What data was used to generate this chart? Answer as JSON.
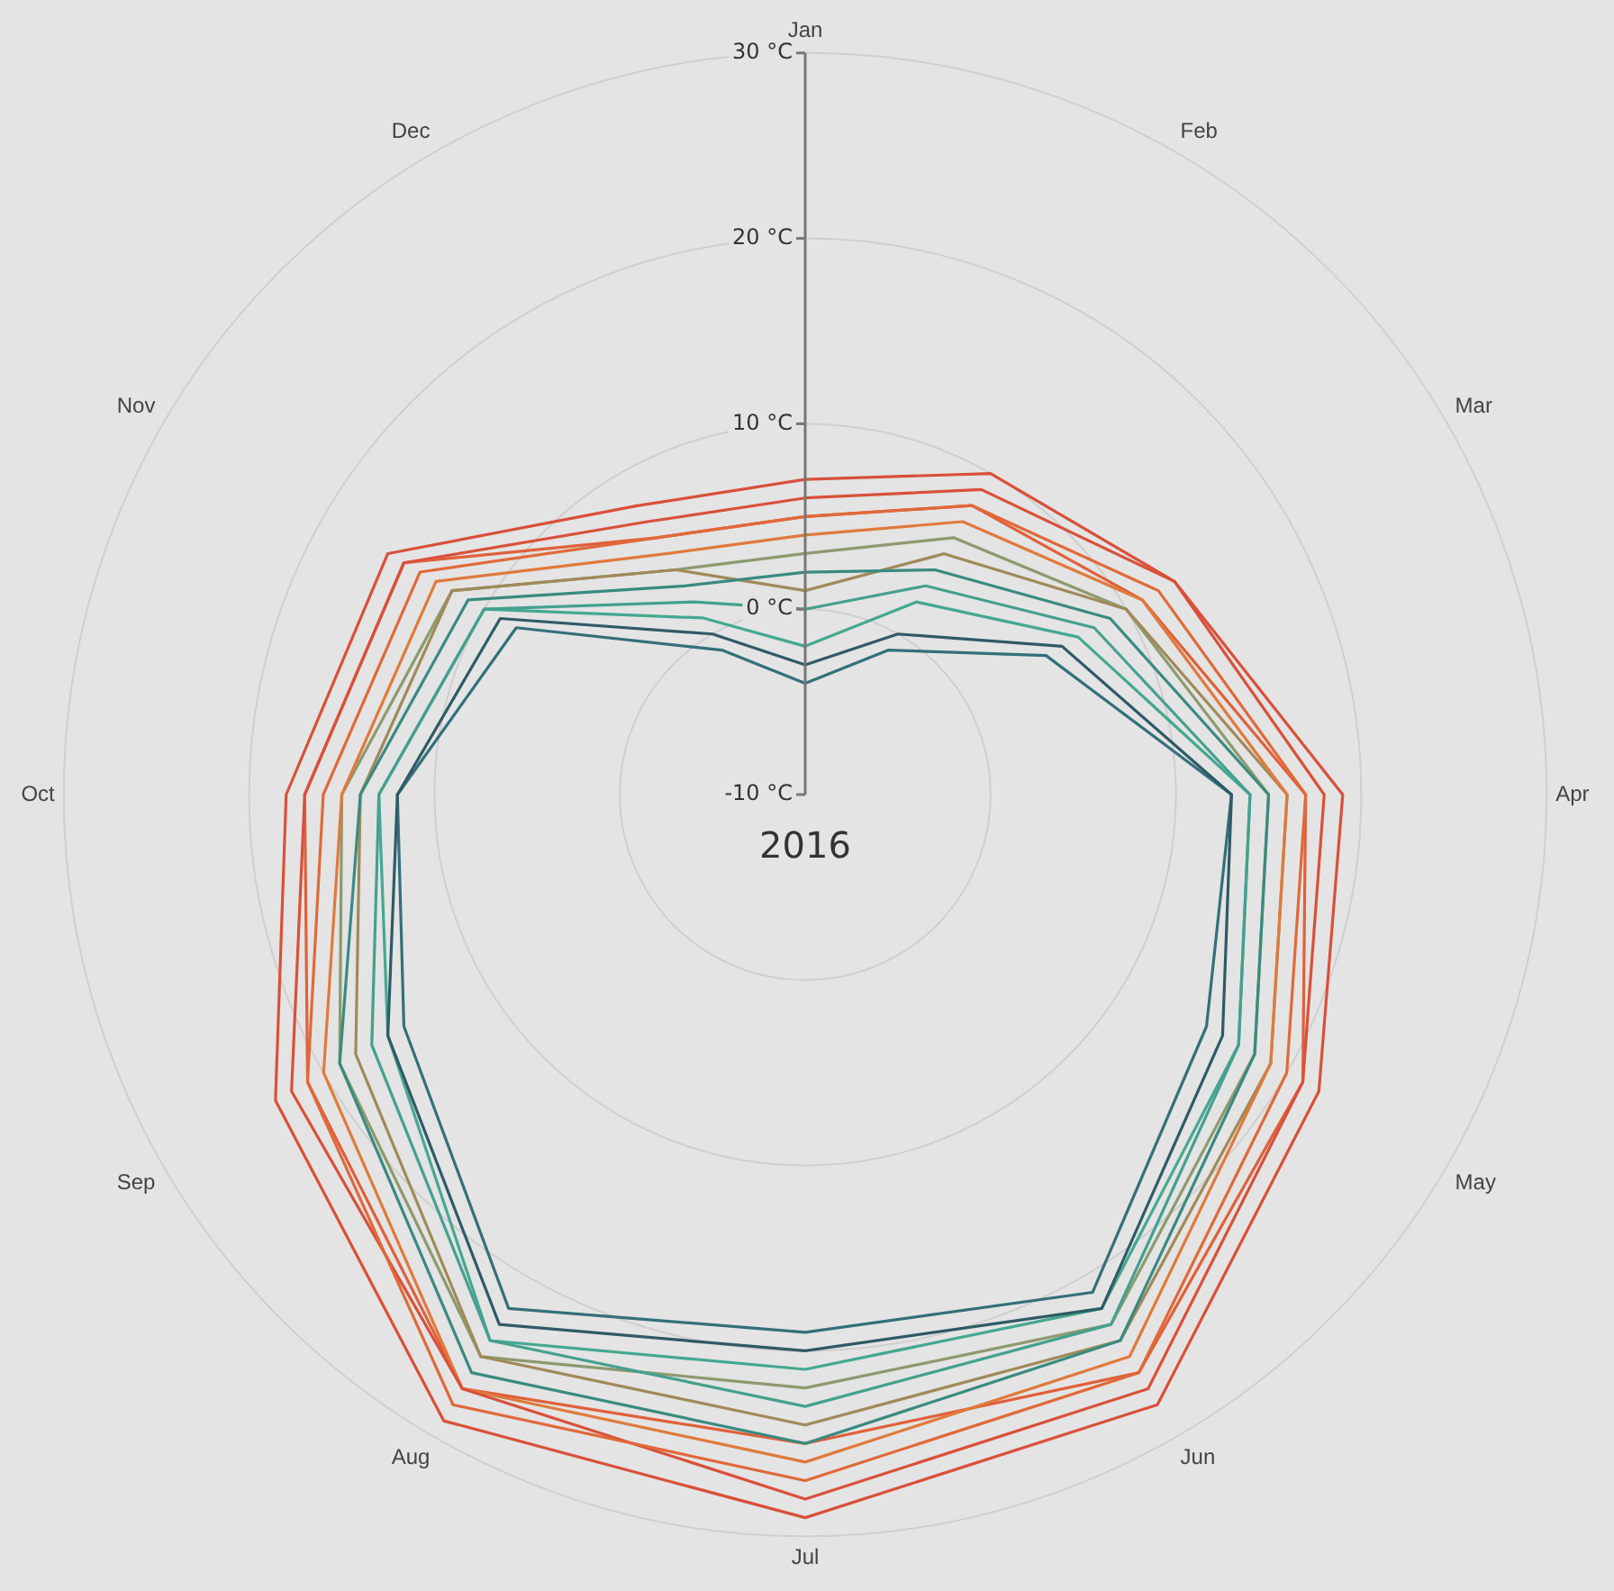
{
  "chart_data": {
    "type": "radar",
    "title": "2016",
    "categories": [
      "Jan",
      "Feb",
      "Mar",
      "Apr",
      "May",
      "Jun",
      "Jul",
      "Aug",
      "Sep",
      "Oct",
      "Nov",
      "Dec"
    ],
    "ylim": [
      -10,
      30
    ],
    "yticks": [
      {
        "value": -10,
        "label": "-10 °C"
      },
      {
        "value": 0,
        "label": "0 °C"
      },
      {
        "value": 10,
        "label": "10 °C"
      },
      {
        "value": 20,
        "label": "20 °C"
      },
      {
        "value": 30,
        "label": "30 °C"
      }
    ],
    "grid": true,
    "legend": false,
    "marker": "none",
    "line_style": "solid",
    "series": [
      {
        "color": "#e0693a",
        "values": [
          5,
          8,
          12,
          17,
          20,
          26,
          27,
          28,
          21,
          16,
          14,
          6
        ]
      },
      {
        "color": "#3a8a80",
        "values": [
          2,
          4,
          9,
          15,
          18,
          24,
          25,
          26,
          19,
          14,
          11,
          3
        ]
      },
      {
        "color": "#2f5a66",
        "values": [
          -3,
          0,
          6,
          13,
          16,
          22,
          20,
          23,
          16,
          12,
          9,
          0
        ]
      },
      {
        "color": "#d9503a",
        "values": [
          6,
          9,
          13,
          18,
          21,
          27,
          28,
          27,
          22,
          17,
          15,
          7
        ]
      },
      {
        "color": "#45a08e",
        "values": [
          0,
          3,
          8,
          14,
          17,
          23,
          23,
          24,
          17,
          13,
          10,
          2
        ]
      },
      {
        "color": "#33707a",
        "values": [
          -4,
          -1,
          5,
          13,
          15,
          21,
          19,
          22,
          15,
          12,
          8,
          -1
        ]
      },
      {
        "color": "#e07a3c",
        "values": [
          4,
          7,
          11,
          16,
          19,
          25,
          26,
          27,
          20,
          15,
          13,
          5
        ]
      },
      {
        "color": "#a08a5a",
        "values": [
          1,
          5,
          10,
          16,
          19,
          24,
          24,
          25,
          18,
          14,
          12,
          4
        ]
      },
      {
        "color": "#d9503a",
        "values": [
          7,
          10,
          13,
          19,
          22,
          28,
          29,
          29,
          23,
          18,
          16,
          8
        ]
      },
      {
        "color": "#8c9a6e",
        "values": [
          3,
          6,
          10,
          15,
          18,
          23,
          22,
          25,
          19,
          15,
          12,
          4
        ]
      },
      {
        "color": "#45a890",
        "values": [
          -2,
          2,
          7,
          14,
          17,
          22,
          21,
          24,
          16,
          13,
          10,
          1
        ]
      },
      {
        "color": "#e0603a",
        "values": [
          5,
          8,
          11,
          17,
          21,
          26,
          25,
          27,
          21,
          17,
          15,
          6
        ]
      }
    ]
  }
}
